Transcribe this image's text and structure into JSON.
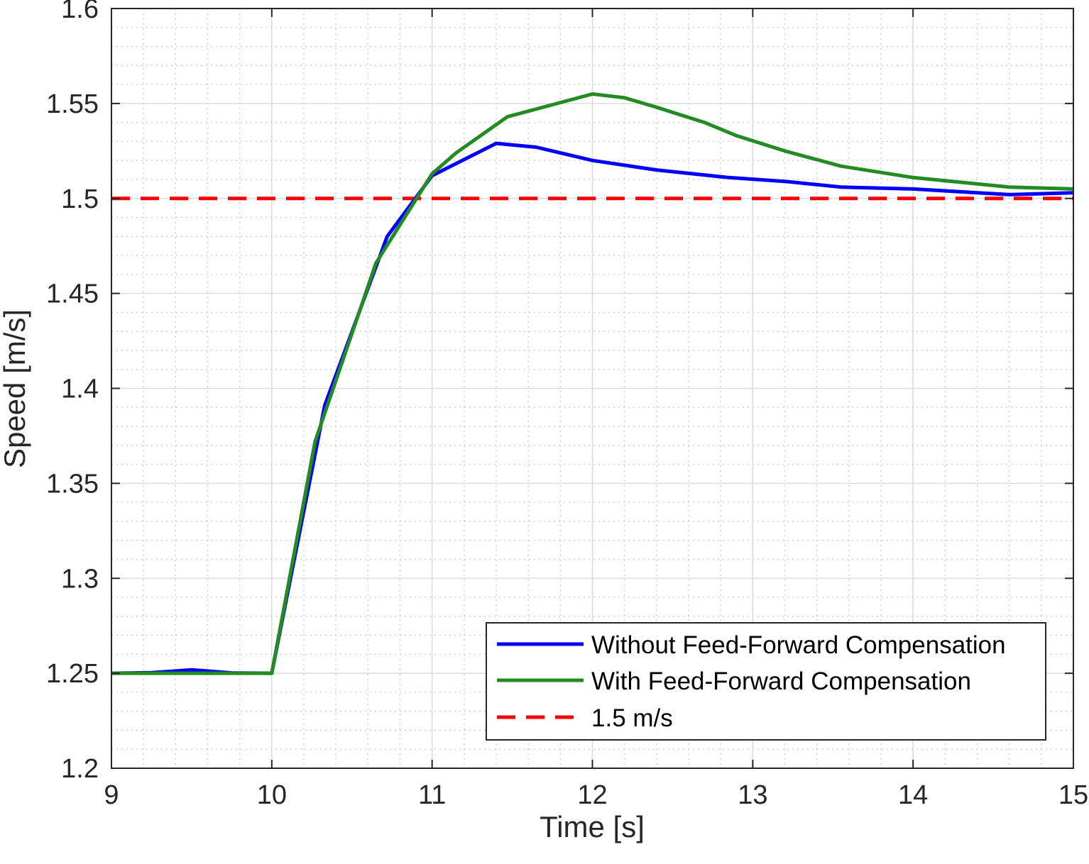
{
  "chart_data": {
    "type": "line",
    "title": "",
    "xlabel": "Time [s]",
    "ylabel": "Speed [m/s]",
    "xlim": [
      9,
      15
    ],
    "ylim": [
      1.2,
      1.6
    ],
    "xticks": [
      "9",
      "10",
      "11",
      "12",
      "13",
      "14",
      "15"
    ],
    "yticks": [
      "1.2",
      "1.25",
      "1.3",
      "1.35",
      "1.4",
      "1.45",
      "1.5",
      "1.55",
      "1.6"
    ],
    "grid": true,
    "minor_grid": true,
    "legend_position": "bottom-right",
    "series": [
      {
        "name": "Without Feed-Forward Compensation",
        "color": "#0000ff",
        "style": "solid",
        "x": [
          9.0,
          9.25,
          9.5,
          9.75,
          10.0,
          10.33,
          10.72,
          11.0,
          11.4,
          11.65,
          12.0,
          12.4,
          12.85,
          13.2,
          13.55,
          14.0,
          14.4,
          14.6,
          15.0
        ],
        "y": [
          1.25,
          1.2503,
          1.2518,
          1.2502,
          1.25,
          1.391,
          1.48,
          1.512,
          1.529,
          1.527,
          1.52,
          1.515,
          1.511,
          1.509,
          1.506,
          1.505,
          1.503,
          1.502,
          1.503
        ]
      },
      {
        "name": "With Feed-Forward Compensation",
        "color": "#228b22",
        "style": "solid",
        "x": [
          9.0,
          10.0,
          10.27,
          10.65,
          11.0,
          11.15,
          11.47,
          12.0,
          12.2,
          12.4,
          12.7,
          12.9,
          13.2,
          13.55,
          14.0,
          14.6,
          15.0
        ],
        "y": [
          1.25,
          1.25,
          1.372,
          1.466,
          1.513,
          1.524,
          1.543,
          1.555,
          1.553,
          1.548,
          1.54,
          1.533,
          1.525,
          1.517,
          1.511,
          1.506,
          1.505
        ]
      },
      {
        "name": "1.5 m/s",
        "color": "#ff0000",
        "style": "dashed",
        "x": [
          9,
          15
        ],
        "y": [
          1.5,
          1.5
        ]
      }
    ]
  }
}
